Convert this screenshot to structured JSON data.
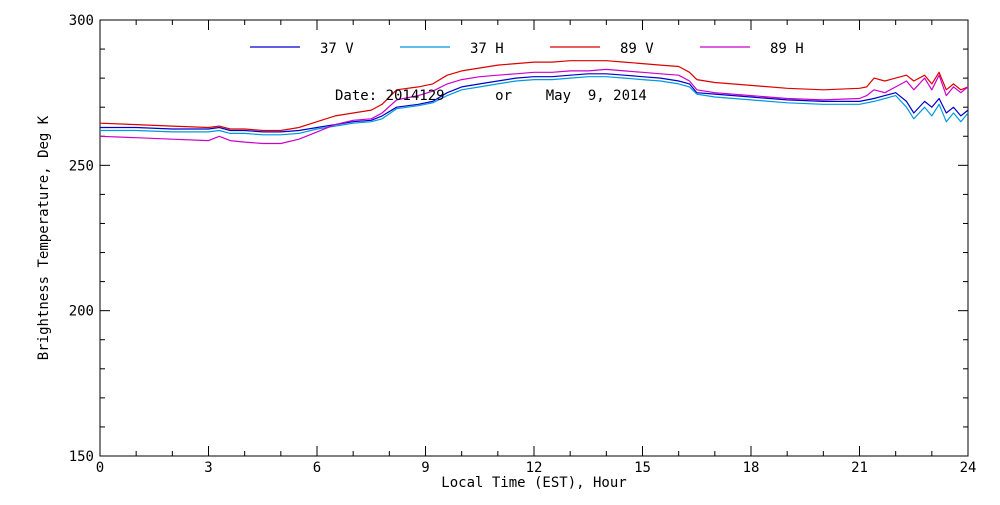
{
  "chart_data": {
    "type": "line",
    "title": "",
    "date_label": "Date: 2014129      or    May  9, 2014",
    "xlabel": "Local Time (EST), Hour",
    "ylabel": "Brightness Temperature, Deg K",
    "xlim": [
      0,
      24
    ],
    "ylim": [
      150,
      300
    ],
    "xticks": [
      0,
      3,
      6,
      9,
      12,
      15,
      18,
      21,
      24
    ],
    "yticks": [
      150,
      200,
      250,
      300
    ],
    "grid": false,
    "legend_position": "top",
    "series": [
      {
        "name": "37 V",
        "color": "#0000cc",
        "x": [
          0,
          1,
          2,
          3,
          3.3,
          3.6,
          4,
          4.5,
          5,
          5.5,
          6,
          6.5,
          7,
          7.5,
          7.8,
          8.2,
          8.8,
          9.2,
          9.6,
          10,
          10.5,
          11,
          11.5,
          12,
          12.5,
          13,
          13.5,
          14,
          14.5,
          15,
          15.5,
          16,
          16.3,
          16.5,
          17,
          18,
          19,
          20,
          21,
          21.4,
          21.7,
          22,
          22.3,
          22.5,
          22.8,
          23,
          23.2,
          23.4,
          23.6,
          23.8,
          24
        ],
        "y": [
          263,
          263,
          262.5,
          262.5,
          263,
          262,
          262,
          261.5,
          261.5,
          262,
          263,
          264,
          265,
          265.5,
          267,
          270,
          271,
          272,
          275,
          277,
          278,
          279,
          280,
          280.5,
          280.5,
          281,
          281.5,
          281.5,
          281,
          280.5,
          280,
          279,
          278,
          275,
          274.5,
          273.5,
          272.5,
          272,
          272,
          273,
          274,
          275,
          272,
          268,
          272,
          270,
          273,
          268,
          270,
          267,
          269
        ]
      },
      {
        "name": "37 H",
        "color": "#0099dd",
        "x": [
          0,
          1,
          2,
          3,
          3.3,
          3.6,
          4,
          4.5,
          5,
          5.5,
          6,
          6.5,
          7,
          7.5,
          7.8,
          8.2,
          8.8,
          9.2,
          9.6,
          10,
          10.5,
          11,
          11.5,
          12,
          12.5,
          13,
          13.5,
          14,
          14.5,
          15,
          15.5,
          16,
          16.3,
          16.5,
          17,
          18,
          19,
          20,
          21,
          21.4,
          21.7,
          22,
          22.3,
          22.5,
          22.8,
          23,
          23.2,
          23.4,
          23.6,
          23.8,
          24
        ],
        "y": [
          262,
          262,
          261.5,
          261.5,
          262,
          261,
          261,
          260.5,
          260.5,
          261,
          262.5,
          263.5,
          264.5,
          265,
          266,
          269.5,
          270.5,
          271.5,
          274,
          276,
          277,
          278,
          279,
          279.5,
          279.5,
          280,
          280.5,
          280.5,
          280,
          279.5,
          279,
          278,
          277,
          274.5,
          273.5,
          272.5,
          271.5,
          271,
          271,
          272,
          273,
          274,
          270,
          266,
          270,
          267,
          271,
          265,
          268,
          265,
          268
        ]
      },
      {
        "name": "89 V",
        "color": "#dd0000",
        "x": [
          0,
          1,
          2,
          3,
          3.3,
          3.6,
          4,
          4.5,
          5,
          5.5,
          6,
          6.5,
          7,
          7.5,
          7.8,
          8.2,
          8.8,
          9.2,
          9.6,
          10,
          10.5,
          11,
          11.5,
          12,
          12.5,
          13,
          13.5,
          14,
          14.5,
          15,
          15.5,
          16,
          16.3,
          16.5,
          17,
          18,
          19,
          20,
          21,
          21.2,
          21.4,
          21.7,
          22,
          22.3,
          22.5,
          22.8,
          23,
          23.2,
          23.4,
          23.6,
          23.8,
          24
        ],
        "y": [
          264.5,
          264,
          263.5,
          263,
          263.5,
          262.5,
          262.5,
          262,
          262,
          263,
          265,
          267,
          268,
          269,
          271,
          276,
          277,
          278,
          281,
          282.5,
          283.5,
          284.5,
          285,
          285.5,
          285.5,
          286,
          286,
          286,
          285.5,
          285,
          284.5,
          284,
          282,
          279.5,
          278.5,
          277.5,
          276.5,
          276,
          276.5,
          277,
          280,
          279,
          280,
          281,
          279,
          281,
          278,
          282,
          276,
          278,
          276,
          277
        ]
      },
      {
        "name": "89 H",
        "color": "#cc00cc",
        "x": [
          0,
          1,
          2,
          3,
          3.3,
          3.6,
          4,
          4.5,
          5,
          5.5,
          6,
          6.5,
          7,
          7.5,
          7.8,
          8.2,
          8.8,
          9.2,
          9.6,
          10,
          10.5,
          11,
          11.5,
          12,
          12.5,
          13,
          13.5,
          14,
          14.5,
          15,
          15.5,
          16,
          16.3,
          16.5,
          17,
          18,
          19,
          20,
          21,
          21.2,
          21.4,
          21.7,
          22,
          22.3,
          22.5,
          22.8,
          23,
          23.2,
          23.4,
          23.6,
          23.8,
          24
        ],
        "y": [
          260,
          259.5,
          259,
          258.5,
          260,
          258.5,
          258,
          257.5,
          257.5,
          259,
          261.5,
          264,
          265.5,
          266,
          268,
          272.5,
          274,
          275.5,
          278,
          279.5,
          280.5,
          281,
          281.5,
          282,
          282,
          282.5,
          282.5,
          283,
          282.5,
          282,
          281.5,
          281,
          279,
          276,
          275,
          274,
          273,
          272.5,
          273,
          274,
          276,
          275,
          277,
          279,
          276,
          280,
          276,
          281,
          274,
          277,
          275,
          277
        ]
      }
    ]
  }
}
